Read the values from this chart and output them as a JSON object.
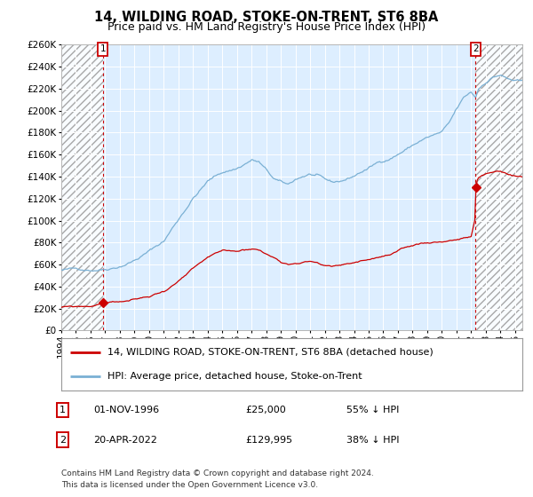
{
  "title": "14, WILDING ROAD, STOKE-ON-TRENT, ST6 8BA",
  "subtitle": "Price paid vs. HM Land Registry's House Price Index (HPI)",
  "legend_line1": "14, WILDING ROAD, STOKE-ON-TRENT, ST6 8BA (detached house)",
  "legend_line2": "HPI: Average price, detached house, Stoke-on-Trent",
  "annotation1_label": "1",
  "annotation1_date": "01-NOV-1996",
  "annotation1_price": "£25,000",
  "annotation1_hpi": "55% ↓ HPI",
  "annotation2_label": "2",
  "annotation2_date": "20-APR-2022",
  "annotation2_price": "£129,995",
  "annotation2_hpi": "38% ↓ HPI",
  "footnote1": "Contains HM Land Registry data © Crown copyright and database right 2024.",
  "footnote2": "This data is licensed under the Open Government Licence v3.0.",
  "sale1_year": 1996.833,
  "sale1_value": 25000,
  "sale2_year": 2022.3,
  "sale2_value": 129995,
  "red_color": "#cc0000",
  "blue_color": "#7ab0d4",
  "bg_color": "#ddeeff",
  "grid_color": "#ffffff",
  "ylim_min": 0,
  "ylim_max": 260000,
  "ytick_step": 20000,
  "xmin": 1994.0,
  "xmax": 2025.5,
  "title_fontsize": 10.5,
  "subtitle_fontsize": 9,
  "tick_fontsize": 7.5,
  "legend_fontsize": 8,
  "annot_fontsize": 8,
  "footnote_fontsize": 6.5
}
